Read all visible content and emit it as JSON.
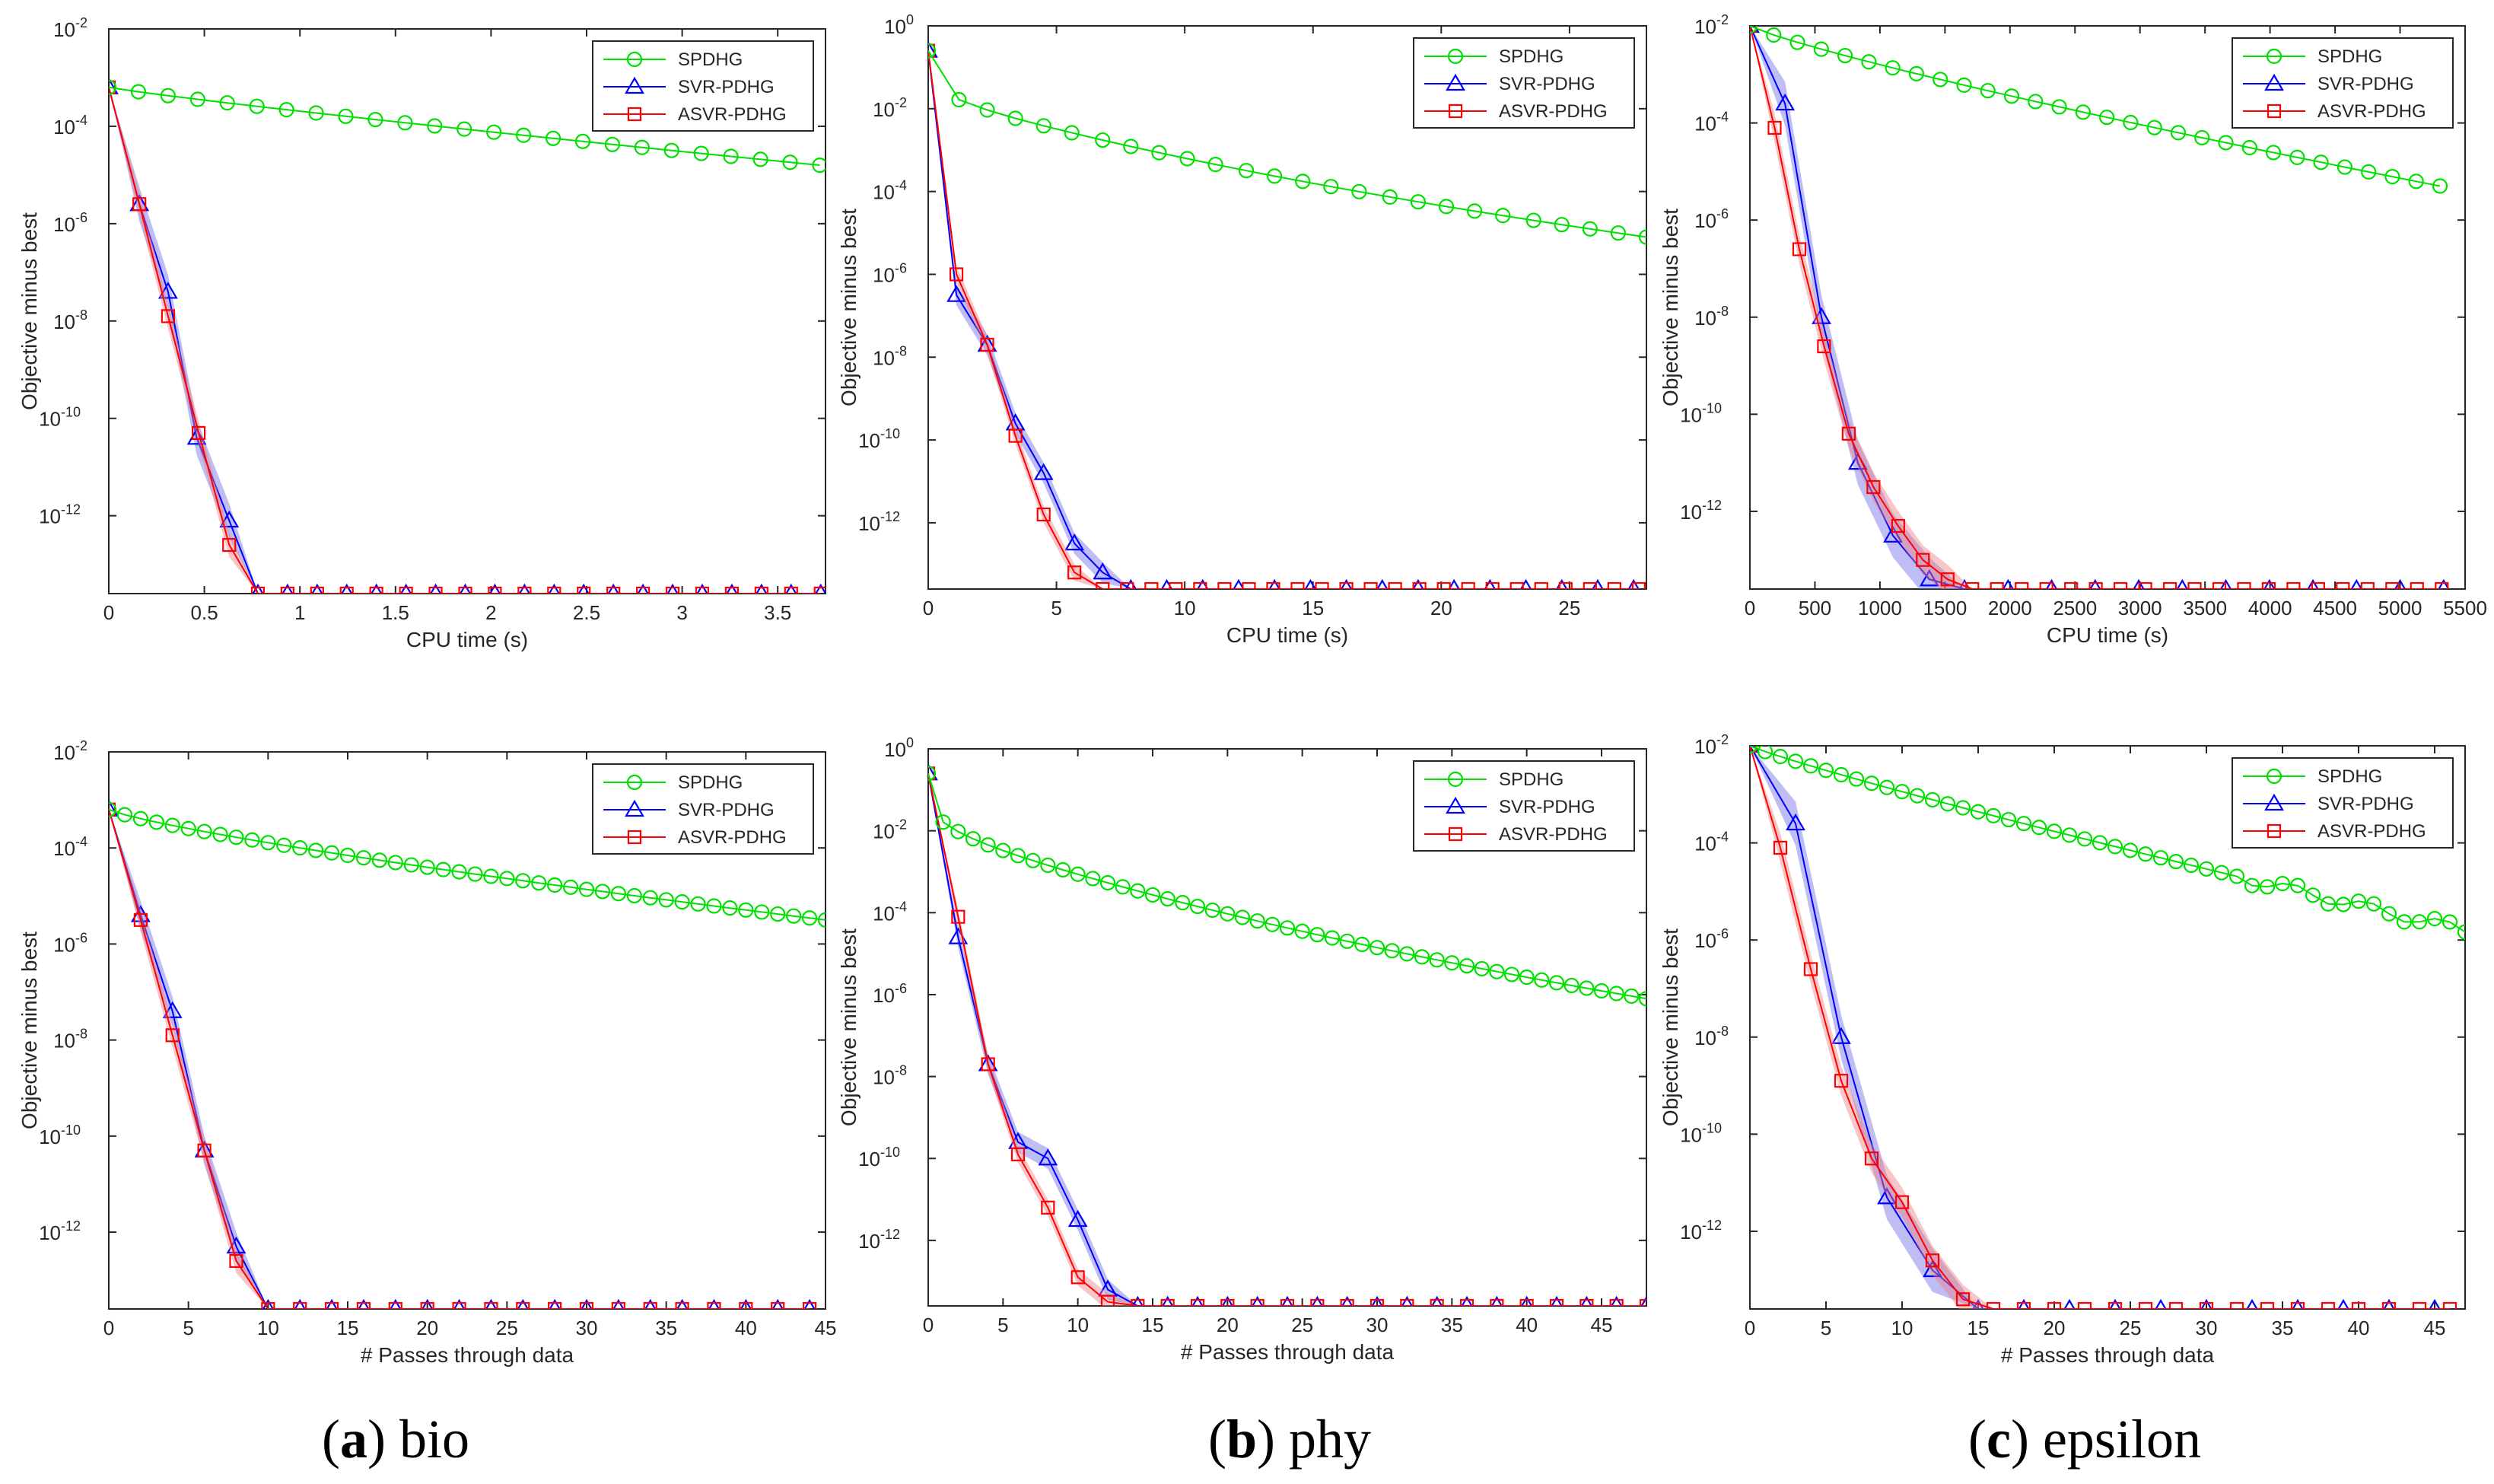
{
  "colors": {
    "SPDHG": "#00e000",
    "SVR-PDHG": "#0000ff",
    "ASVR-PDHG": "#ff0000",
    "SVR_band": "#6f6fe8",
    "ASVR_band": "#f08080"
  },
  "captions": [
    {
      "letter": "a",
      "text": "bio"
    },
    {
      "letter": "b",
      "text": "phy"
    },
    {
      "letter": "c",
      "text": "epsilon"
    }
  ],
  "chart_data": [
    {
      "id": "bio-cpu",
      "type": "line",
      "yscale": "log",
      "xlabel": "CPU time (s)",
      "ylabel": "Objective minus best",
      "xlim": [
        0,
        3.75
      ],
      "ylim_exp": [
        -13.6,
        -2
      ],
      "xticks": [
        0,
        0.5,
        1,
        1.5,
        2,
        2.5,
        3,
        3.5
      ],
      "xtick_labels": [
        "0",
        "0.5",
        "1",
        "1.5",
        "2",
        "2.5",
        "3",
        "3.5"
      ],
      "yticks_exp": [
        -12,
        -10,
        -8,
        -6,
        -4,
        -2
      ],
      "legend": [
        "SPDHG",
        "SVR-PDHG",
        "ASVR-PDHG"
      ],
      "legend_position": "top-right",
      "series": [
        {
          "name": "SPDHG",
          "marker": "circle",
          "x": {
            "start": 0,
            "step": 0.155,
            "count": 25
          },
          "log_from": -3.2,
          "log_to": -4.8,
          "curve": 0.9
        },
        {
          "name": "SVR-PDHG",
          "marker": "triangle",
          "x": [
            0,
            0.16,
            0.31,
            0.46,
            0.63,
            0.78
          ],
          "log": [
            -3.2,
            -5.6,
            -7.4,
            -10.4,
            -12.1,
            -13.6
          ],
          "tail": {
            "step": 0.155,
            "to": 3.75
          },
          "band": 0.35
        },
        {
          "name": "ASVR-PDHG",
          "marker": "square",
          "x": [
            0,
            0.16,
            0.31,
            0.47,
            0.63,
            0.78
          ],
          "log": [
            -3.2,
            -5.6,
            -7.9,
            -10.3,
            -12.6,
            -13.6
          ],
          "tail": {
            "step": 0.155,
            "to": 3.75
          },
          "band": 0.25
        }
      ]
    },
    {
      "id": "phy-cpu",
      "type": "line",
      "yscale": "log",
      "xlabel": "CPU time (s)",
      "ylabel": "Objective minus best",
      "xlim": [
        0,
        28
      ],
      "ylim_exp": [
        -13.6,
        0
      ],
      "xticks": [
        0,
        5,
        10,
        15,
        20,
        25
      ],
      "xtick_labels": [
        "0",
        "5",
        "10",
        "15",
        "20",
        "25"
      ],
      "yticks_exp": [
        -12,
        -10,
        -8,
        -6,
        -4,
        -2,
        0
      ],
      "legend": [
        "SPDHG",
        "SVR-PDHG",
        "ASVR-PDHG"
      ],
      "legend_position": "top-right",
      "series": [
        {
          "name": "SPDHG",
          "marker": "circle",
          "x": [
            0,
            1.2,
            2.3,
            3.4,
            4.5,
            5.6,
            6.8,
            7.9,
            9.0,
            10.1,
            11.2,
            12.4,
            13.5,
            14.6,
            15.7,
            16.8,
            18.0,
            19.1,
            20.2,
            21.3,
            22.4,
            23.6,
            24.7,
            25.8,
            26.9,
            28.0
          ],
          "log_from": -0.6,
          "log_to": -5.1,
          "curve": 0.55,
          "first_drop": -1.8
        },
        {
          "name": "SVR-PDHG",
          "marker": "triangle",
          "x": [
            0,
            1.1,
            2.3,
            3.4,
            4.5,
            5.7,
            6.8,
            7.9
          ],
          "log": [
            -0.6,
            -6.5,
            -7.7,
            -9.6,
            -10.8,
            -12.5,
            -13.2,
            -13.6
          ],
          "tail": {
            "step": 1.4,
            "to": 28
          },
          "band": 0.25
        },
        {
          "name": "ASVR-PDHG",
          "marker": "square",
          "x": [
            0,
            1.1,
            2.3,
            3.4,
            4.5,
            5.7,
            6.8
          ],
          "log": [
            -0.6,
            -6.0,
            -7.7,
            -9.9,
            -11.8,
            -13.2,
            -13.6
          ],
          "tail": {
            "step": 0.95,
            "to": 28
          },
          "band": 0.2
        }
      ]
    },
    {
      "id": "epsilon-cpu",
      "type": "line",
      "yscale": "log",
      "xlabel": "CPU time (s)",
      "ylabel": "Objective minus best",
      "xlim": [
        0,
        5500
      ],
      "ylim_exp": [
        -13.6,
        -2
      ],
      "xticks": [
        0,
        500,
        1000,
        1500,
        2000,
        2500,
        3000,
        3500,
        4000,
        4500,
        5000,
        5500
      ],
      "xtick_labels": [
        "0",
        "500",
        "1000",
        "1500",
        "2000",
        "2500",
        "3000",
        "3500",
        "4000",
        "4500",
        "5000",
        "5500"
      ],
      "yticks_exp": [
        -12,
        -10,
        -8,
        -6,
        -4,
        -2
      ],
      "legend": [
        "SPDHG",
        "SVR-PDHG",
        "ASVR-PDHG"
      ],
      "legend_position": "top-right",
      "series": [
        {
          "name": "SPDHG",
          "marker": "circle",
          "x": {
            "start": 0,
            "step": 183,
            "count": 30
          },
          "log_from": -2.0,
          "log_to": -5.3,
          "curve": 0.85
        },
        {
          "name": "SVR-PDHG",
          "marker": "triangle",
          "x": [
            0,
            270,
            550,
            830,
            1100,
            1380,
            1650
          ],
          "log": [
            -2.0,
            -3.6,
            -8.0,
            -11.0,
            -12.5,
            -13.4,
            -13.6
          ],
          "tail": {
            "step": 335,
            "to": 5500
          },
          "band": 0.45
        },
        {
          "name": "ASVR-PDHG",
          "marker": "square",
          "x": [
            0,
            190,
            380,
            570,
            760,
            950,
            1140,
            1330,
            1520,
            1710
          ],
          "log": [
            -2.0,
            -4.1,
            -6.6,
            -8.6,
            -10.4,
            -11.5,
            -12.3,
            -13.0,
            -13.4,
            -13.6
          ],
          "tail": {
            "step": 190,
            "to": 5500
          },
          "band": 0.3
        }
      ]
    },
    {
      "id": "bio-passes",
      "type": "line",
      "yscale": "log",
      "xlabel": "# Passes through data",
      "ylabel": "Objective minus best",
      "xlim": [
        0,
        45
      ],
      "ylim_exp": [
        -13.6,
        -2
      ],
      "xticks": [
        0,
        5,
        10,
        15,
        20,
        25,
        30,
        35,
        40,
        45
      ],
      "xtick_labels": [
        "0",
        "5",
        "10",
        "15",
        "20",
        "25",
        "30",
        "35",
        "40",
        "45"
      ],
      "yticks_exp": [
        -12,
        -10,
        -8,
        -6,
        -4,
        -2
      ],
      "legend": [
        "SPDHG",
        "SVR-PDHG",
        "ASVR-PDHG"
      ],
      "legend_position": "top-right",
      "series": [
        {
          "name": "SPDHG",
          "marker": "circle",
          "x": {
            "start": 0,
            "step": 1,
            "count": 46
          },
          "log_from": -3.2,
          "log_to": -5.5,
          "curve": 0.8
        },
        {
          "name": "SVR-PDHG",
          "marker": "triangle",
          "x": [
            0,
            2,
            4,
            6,
            8,
            10
          ],
          "log": [
            -3.2,
            -5.4,
            -7.4,
            -10.3,
            -12.3,
            -13.6
          ],
          "tail": {
            "step": 2,
            "to": 45
          },
          "band": 0.3
        },
        {
          "name": "ASVR-PDHG",
          "marker": "square",
          "x": [
            0,
            2,
            4,
            6,
            8,
            10
          ],
          "log": [
            -3.2,
            -5.5,
            -7.9,
            -10.3,
            -12.6,
            -13.6
          ],
          "tail": {
            "step": 2,
            "to": 45
          },
          "band": 0.25
        }
      ]
    },
    {
      "id": "phy-passes",
      "type": "line",
      "yscale": "log",
      "xlabel": "# Passes through data",
      "ylabel": "Objective minus best",
      "xlim": [
        0,
        48
      ],
      "ylim_exp": [
        -13.6,
        0
      ],
      "xticks": [
        0,
        5,
        10,
        15,
        20,
        25,
        30,
        35,
        40,
        45
      ],
      "xtick_labels": [
        "0",
        "5",
        "10",
        "15",
        "20",
        "25",
        "30",
        "35",
        "40",
        "45"
      ],
      "yticks_exp": [
        -12,
        -10,
        -8,
        -6,
        -4,
        -2,
        0
      ],
      "legend": [
        "SPDHG",
        "SVR-PDHG",
        "ASVR-PDHG"
      ],
      "legend_position": "top-right",
      "series": [
        {
          "name": "SPDHG",
          "marker": "circle",
          "x": {
            "start": 0,
            "step": 1,
            "count": 49
          },
          "log_from": -0.6,
          "log_to": -6.1,
          "curve": 0.55,
          "first_drop": -1.8
        },
        {
          "name": "SVR-PDHG",
          "marker": "triangle",
          "x": [
            0,
            2,
            4,
            6,
            8,
            10,
            12,
            14
          ],
          "log": [
            -0.6,
            -4.6,
            -7.7,
            -9.6,
            -10.0,
            -11.5,
            -13.2,
            -13.6
          ],
          "tail": {
            "step": 2,
            "to": 48
          },
          "band": 0.25
        },
        {
          "name": "ASVR-PDHG",
          "marker": "square",
          "x": [
            0,
            2,
            4,
            6,
            8,
            10,
            12,
            14
          ],
          "log": [
            -0.6,
            -4.1,
            -7.7,
            -9.9,
            -11.2,
            -12.9,
            -13.5,
            -13.6
          ],
          "tail": {
            "step": 2,
            "to": 48
          },
          "band": 0.2
        }
      ]
    },
    {
      "id": "epsilon-passes",
      "type": "line",
      "yscale": "log",
      "xlabel": "# Passes through data",
      "ylabel": "Objective minus best",
      "xlim": [
        0,
        47
      ],
      "ylim_exp": [
        -13.6,
        -2
      ],
      "xticks": [
        0,
        5,
        10,
        15,
        20,
        25,
        30,
        35,
        40,
        45
      ],
      "xtick_labels": [
        "0",
        "5",
        "10",
        "15",
        "20",
        "25",
        "30",
        "35",
        "40",
        "45"
      ],
      "yticks_exp": [
        -12,
        -10,
        -8,
        -6,
        -4,
        -2
      ],
      "legend": [
        "SPDHG",
        "SVR-PDHG",
        "ASVR-PDHG"
      ],
      "legend_position": "top-right",
      "series": [
        {
          "name": "SPDHG",
          "marker": "circle",
          "x": {
            "start": 0,
            "step": 1,
            "count": 48
          },
          "log_from": -2.0,
          "log_to": -5.8,
          "curve": 0.9,
          "wiggle": true
        },
        {
          "name": "SVR-PDHG",
          "marker": "triangle",
          "x": [
            0,
            3,
            6,
            9,
            12,
            15
          ],
          "log": [
            -2.0,
            -3.6,
            -8.0,
            -11.3,
            -12.8,
            -13.6
          ],
          "tail": {
            "step": 3,
            "to": 47
          },
          "band": 0.45
        },
        {
          "name": "ASVR-PDHG",
          "marker": "square",
          "x": [
            0,
            2,
            4,
            6,
            8,
            10,
            12,
            14,
            16
          ],
          "log": [
            -2.0,
            -4.1,
            -6.6,
            -8.9,
            -10.5,
            -11.4,
            -12.6,
            -13.4,
            -13.6
          ],
          "tail": {
            "step": 2,
            "to": 47
          },
          "band": 0.3
        }
      ]
    }
  ]
}
